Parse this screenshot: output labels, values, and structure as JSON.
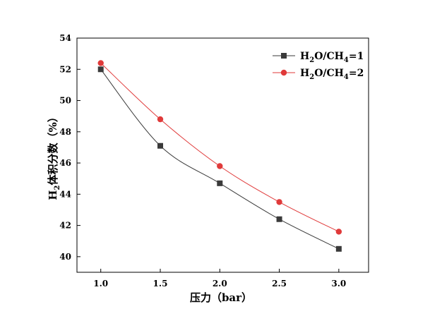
{
  "chart_data": {
    "type": "line",
    "title": "",
    "xlabel": "压力（bar）",
    "ylabel_main": "H",
    "ylabel_sub": "2",
    "ylabel_rest": "体积分数（%）",
    "x": [
      1.0,
      1.5,
      2.0,
      2.5,
      3.0
    ],
    "x_tick_labels": [
      "1.0",
      "1.5",
      "2.0",
      "2.5",
      "3.0"
    ],
    "xlim": [
      0.8,
      3.25
    ],
    "y_ticks": [
      40,
      42,
      44,
      46,
      48,
      50,
      52,
      54
    ],
    "y_tick_labels": [
      "40",
      "42",
      "44",
      "46",
      "48",
      "50",
      "52",
      "54"
    ],
    "ylim": [
      39,
      54
    ],
    "grid": false,
    "legend_position": "top-right",
    "series": [
      {
        "legend_parts": [
          "H",
          "2",
          "O/CH",
          "4",
          "=1"
        ],
        "values": [
          52.0,
          47.1,
          44.7,
          42.4,
          40.5
        ],
        "color": "#3a3a3a",
        "marker": "square"
      },
      {
        "legend_parts": [
          "H",
          "2",
          "O/CH",
          "4",
          "=2"
        ],
        "values": [
          52.4,
          48.8,
          45.8,
          43.5,
          41.6
        ],
        "color": "#e03a3a",
        "marker": "circle"
      }
    ]
  }
}
